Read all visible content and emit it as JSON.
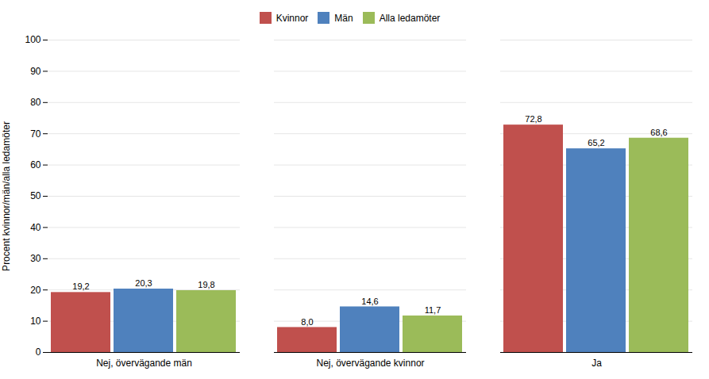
{
  "chart_data": {
    "type": "bar",
    "categories": [
      "Nej, övervägande män",
      "Nej, övervägande kvinnor",
      "Ja"
    ],
    "series": [
      {
        "name": "Kvinnor",
        "color": "#C0504D",
        "values": [
          19.2,
          8.0,
          72.8
        ],
        "value_labels": [
          "19,2",
          "8,0",
          "72,8"
        ]
      },
      {
        "name": "Män",
        "color": "#4F81BD",
        "values": [
          20.3,
          14.6,
          65.2
        ],
        "value_labels": [
          "20,3",
          "14,6",
          "65,2"
        ]
      },
      {
        "name": "Alla ledamöter",
        "color": "#9BBB59",
        "values": [
          19.8,
          11.7,
          68.6
        ],
        "value_labels": [
          "19,8",
          "11,7",
          "68,6"
        ]
      }
    ],
    "ylabel": "Procent kvinnor/män/alla ledamöter",
    "ylim": [
      0,
      100
    ],
    "yticks": [
      0,
      10,
      20,
      30,
      40,
      50,
      60,
      70,
      80,
      90,
      100
    ],
    "grid": true,
    "legend": "top",
    "data_labels": true
  }
}
